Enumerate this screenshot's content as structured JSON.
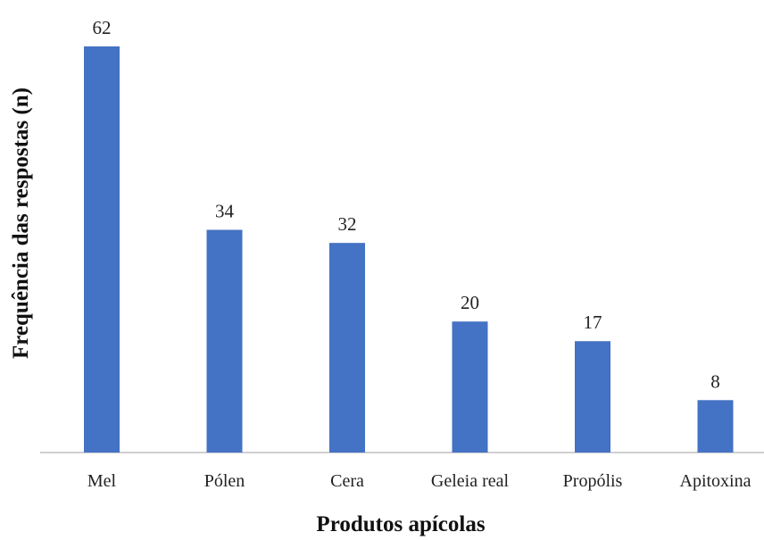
{
  "chart_data": {
    "type": "bar",
    "title": "",
    "xlabel": "Produtos apícolas",
    "ylabel": "Frequência das respostas (n)",
    "categories": [
      "Mel",
      "Pólen",
      "Cera",
      "Geleia real",
      "Propólis",
      "Apitoxina"
    ],
    "values": [
      62,
      34,
      32,
      20,
      17,
      8
    ],
    "data_labels": [
      "62",
      "34",
      "32",
      "20",
      "17",
      "8"
    ],
    "ylim": [
      0,
      62
    ],
    "grid": false,
    "legend": "none",
    "bar_color": "#4472C4"
  }
}
